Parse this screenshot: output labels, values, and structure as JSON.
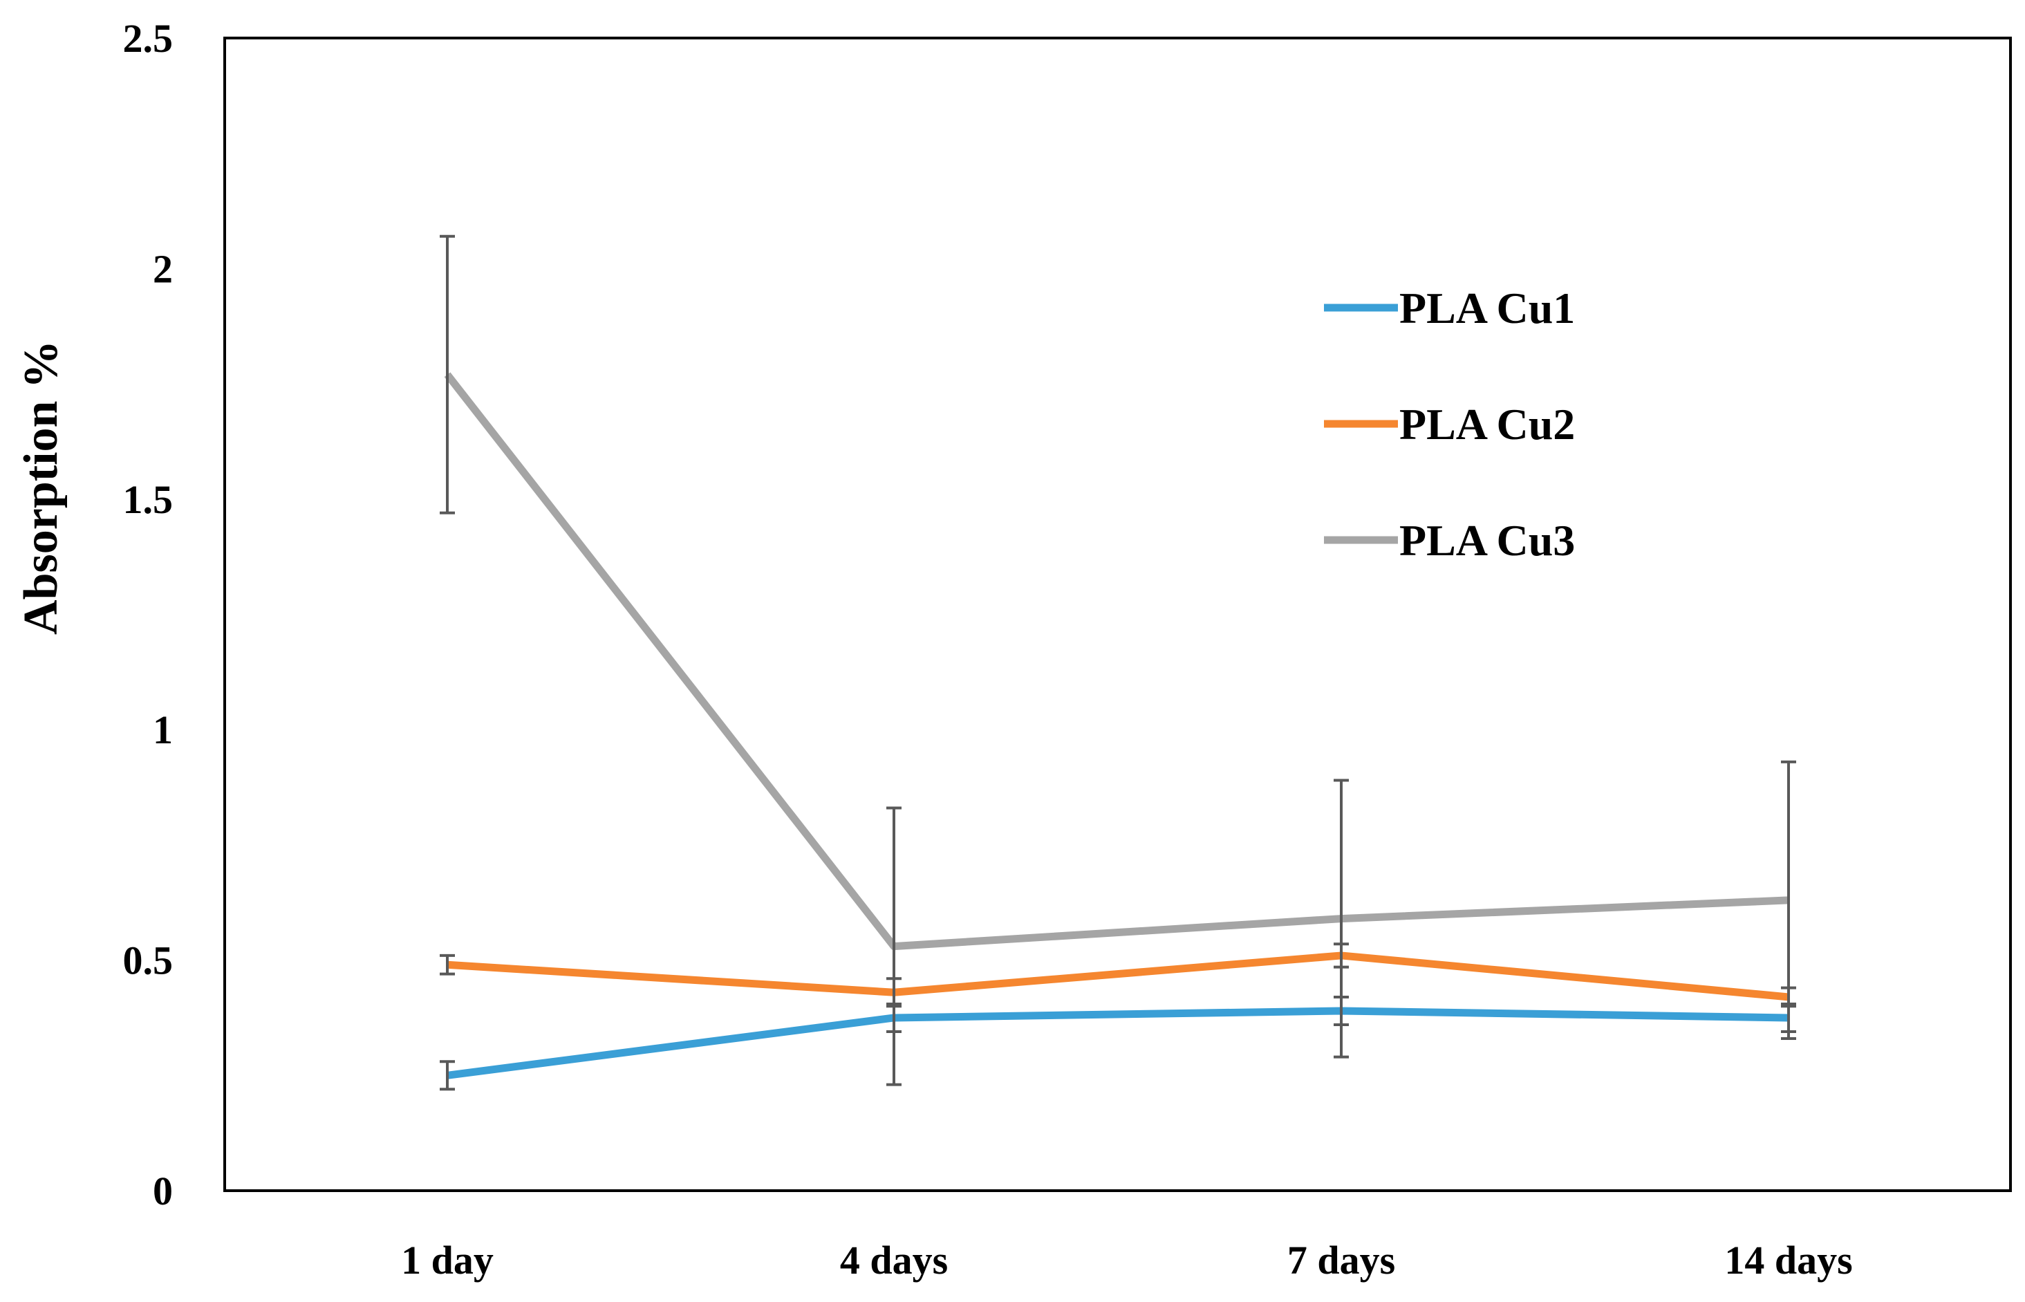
{
  "chart_data": {
    "type": "line",
    "title": "",
    "xlabel": "",
    "ylabel": "Absorption %",
    "categories": [
      "1 day",
      "4 days",
      "7 days",
      "14 days"
    ],
    "ylim": [
      0,
      2.5
    ],
    "yticks": [
      0,
      0.5,
      1,
      1.5,
      2,
      2.5
    ],
    "ytick_labels": [
      "0",
      "0.5",
      "1",
      "1.5",
      "2",
      "2.5"
    ],
    "grid": false,
    "legend_position": "top-right",
    "series": [
      {
        "name": "PLA Cu1",
        "color": "#3a9fd6",
        "values": [
          0.25,
          0.375,
          0.39,
          0.375
        ],
        "errors": [
          0.03,
          0.03,
          0.03,
          0.03
        ]
      },
      {
        "name": "PLA Cu2",
        "color": "#f5862f",
        "values": [
          0.49,
          0.43,
          0.51,
          0.42
        ],
        "errors": [
          0.02,
          0.03,
          0.025,
          0.02
        ]
      },
      {
        "name": "PLA Cu3",
        "color": "#a5a5a5",
        "values": [
          1.77,
          0.53,
          0.59,
          0.63
        ],
        "errors": [
          0.3,
          0.3,
          0.3,
          0.3
        ]
      }
    ],
    "errorbar_color": "#595959"
  }
}
